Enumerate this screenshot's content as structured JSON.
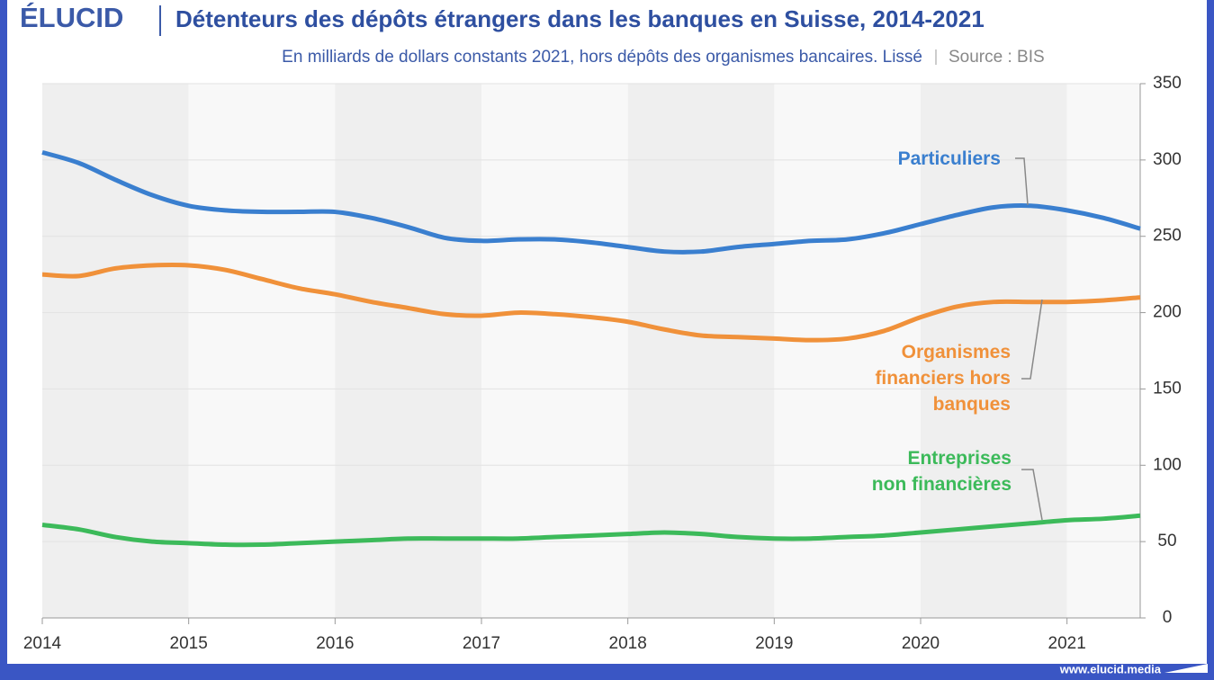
{
  "header": {
    "logo": "ÉLUCID",
    "footer": "www.elucid.media"
  },
  "chart_data": {
    "type": "line",
    "title": "Détenteurs des dépôts étrangers dans les banques en Suisse, 2014-2021",
    "subtitle": "En milliards de dollars constants 2021, hors dépôts des organismes bancaires. Lissé",
    "source": "Source : BIS",
    "x": [
      2014,
      2014.25,
      2014.5,
      2014.75,
      2015,
      2015.25,
      2015.5,
      2015.75,
      2016,
      2016.25,
      2016.5,
      2016.75,
      2017,
      2017.25,
      2017.5,
      2017.75,
      2018,
      2018.25,
      2018.5,
      2018.75,
      2019,
      2019.25,
      2019.5,
      2019.75,
      2020,
      2020.25,
      2020.5,
      2020.75,
      2021,
      2021.25,
      2021.5
    ],
    "series": [
      {
        "name": "Particuliers",
        "color": "#3a7fcf",
        "values": [
          305,
          298,
          287,
          277,
          270,
          267,
          266,
          266,
          266,
          262,
          256,
          249,
          247,
          248,
          248,
          246,
          243,
          240,
          240,
          243,
          245,
          247,
          248,
          252,
          258,
          264,
          269,
          270,
          267,
          262,
          255
        ]
      },
      {
        "name": "Organismes\nfinanciers hors\nbanques",
        "color": "#f0913a",
        "values": [
          225,
          224,
          229,
          231,
          231,
          228,
          222,
          216,
          212,
          207,
          203,
          199,
          198,
          200,
          199,
          197,
          194,
          189,
          185,
          184,
          183,
          182,
          183,
          188,
          197,
          204,
          207,
          207,
          207,
          208,
          210
        ]
      },
      {
        "name": "Entreprises\nnon financières",
        "color": "#3cba5a",
        "values": [
          61,
          58,
          53,
          50,
          49,
          48,
          48,
          49,
          50,
          51,
          52,
          52,
          52,
          52,
          53,
          54,
          55,
          56,
          55,
          53,
          52,
          52,
          53,
          54,
          56,
          58,
          60,
          62,
          64,
          65,
          67
        ]
      }
    ],
    "xlim": [
      2014,
      2021.5
    ],
    "xticks": [
      2014,
      2015,
      2016,
      2017,
      2018,
      2019,
      2020,
      2021
    ],
    "ylim": [
      0,
      350
    ],
    "yticks": [
      0,
      50,
      100,
      150,
      200,
      250,
      300,
      350
    ],
    "grid": true
  }
}
